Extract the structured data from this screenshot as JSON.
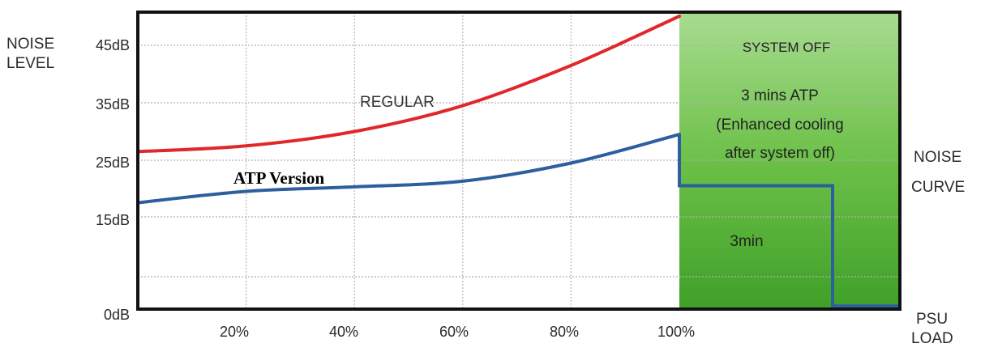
{
  "chart_data": {
    "type": "line",
    "ylabel": [
      "NOISE",
      "LEVEL"
    ],
    "xlabel": [
      "PSU",
      "LOAD"
    ],
    "right_label": [
      "NOISE",
      "CURVE"
    ],
    "y_ticks": [
      "45dB",
      "35dB",
      "25dB",
      "15dB",
      "0dB"
    ],
    "x_ticks": [
      "20%",
      "40%",
      "60%",
      "80%",
      "100%"
    ],
    "series": [
      {
        "name": "REGULAR",
        "color": "#e0282c",
        "x": [
          0,
          20,
          40,
          60,
          80,
          100
        ],
        "y": [
          26.5,
          27.5,
          30,
          34.5,
          41.5,
          50
        ]
      },
      {
        "name": "ATP Version",
        "color": "#2d5f9e",
        "x": [
          0,
          20,
          40,
          60,
          80,
          100
        ],
        "y": [
          17.5,
          19.5,
          20.3,
          21.3,
          24.5,
          29.5
        ]
      }
    ],
    "atp_after_off": {
      "color": "#2d5f9e",
      "level_db": 20.5,
      "drop_to_db": 0.5
    },
    "system_off_zone": {
      "color": "#5cb338",
      "title": "SYSTEM OFF",
      "lines": [
        "3 mins ATP",
        "(Enhanced cooling",
        "after system off)"
      ],
      "duration_label": "3min"
    }
  }
}
